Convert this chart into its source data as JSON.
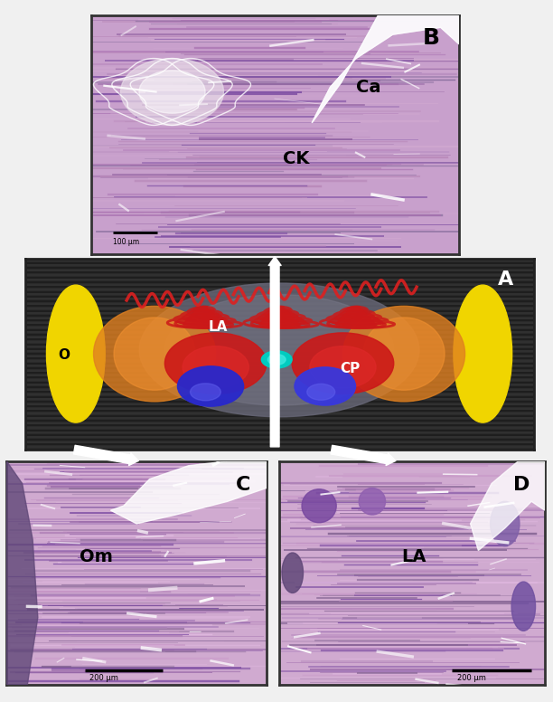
{
  "panel_B": {
    "label": "B",
    "text_CK": [
      "CK",
      0.52,
      0.38
    ],
    "text_Ca": [
      "Ca",
      0.72,
      0.68
    ],
    "scale_text": "100 μm",
    "bg_color": "#c8a0c8"
  },
  "panel_A": {
    "label": "A",
    "labels_CP": [
      "CP",
      0.62,
      0.4
    ],
    "labels_LA": [
      "LA",
      0.36,
      0.62
    ],
    "labels_O": [
      "O",
      0.065,
      0.47
    ],
    "eye_color": "#f0d500",
    "brain_gray": "#808090",
    "orange_color": "#e08020",
    "red_color": "#cc1818",
    "blue_color": "#2828cc",
    "cyan_color": "#00ccc0",
    "stripe_dark": "#1c1c1c",
    "stripe_light": "#323232"
  },
  "panel_C": {
    "label": "C",
    "text_Om": [
      "Om",
      0.28,
      0.55
    ],
    "scale_text": "200 μm",
    "bg_color": "#d8b0d8"
  },
  "panel_D": {
    "label": "D",
    "text_LA": [
      "LA",
      0.46,
      0.55
    ],
    "scale_text": "200 μm",
    "bg_color": "#d8b0d8"
  },
  "arrow_color": "white",
  "figure_bg": "#f0f0f0"
}
